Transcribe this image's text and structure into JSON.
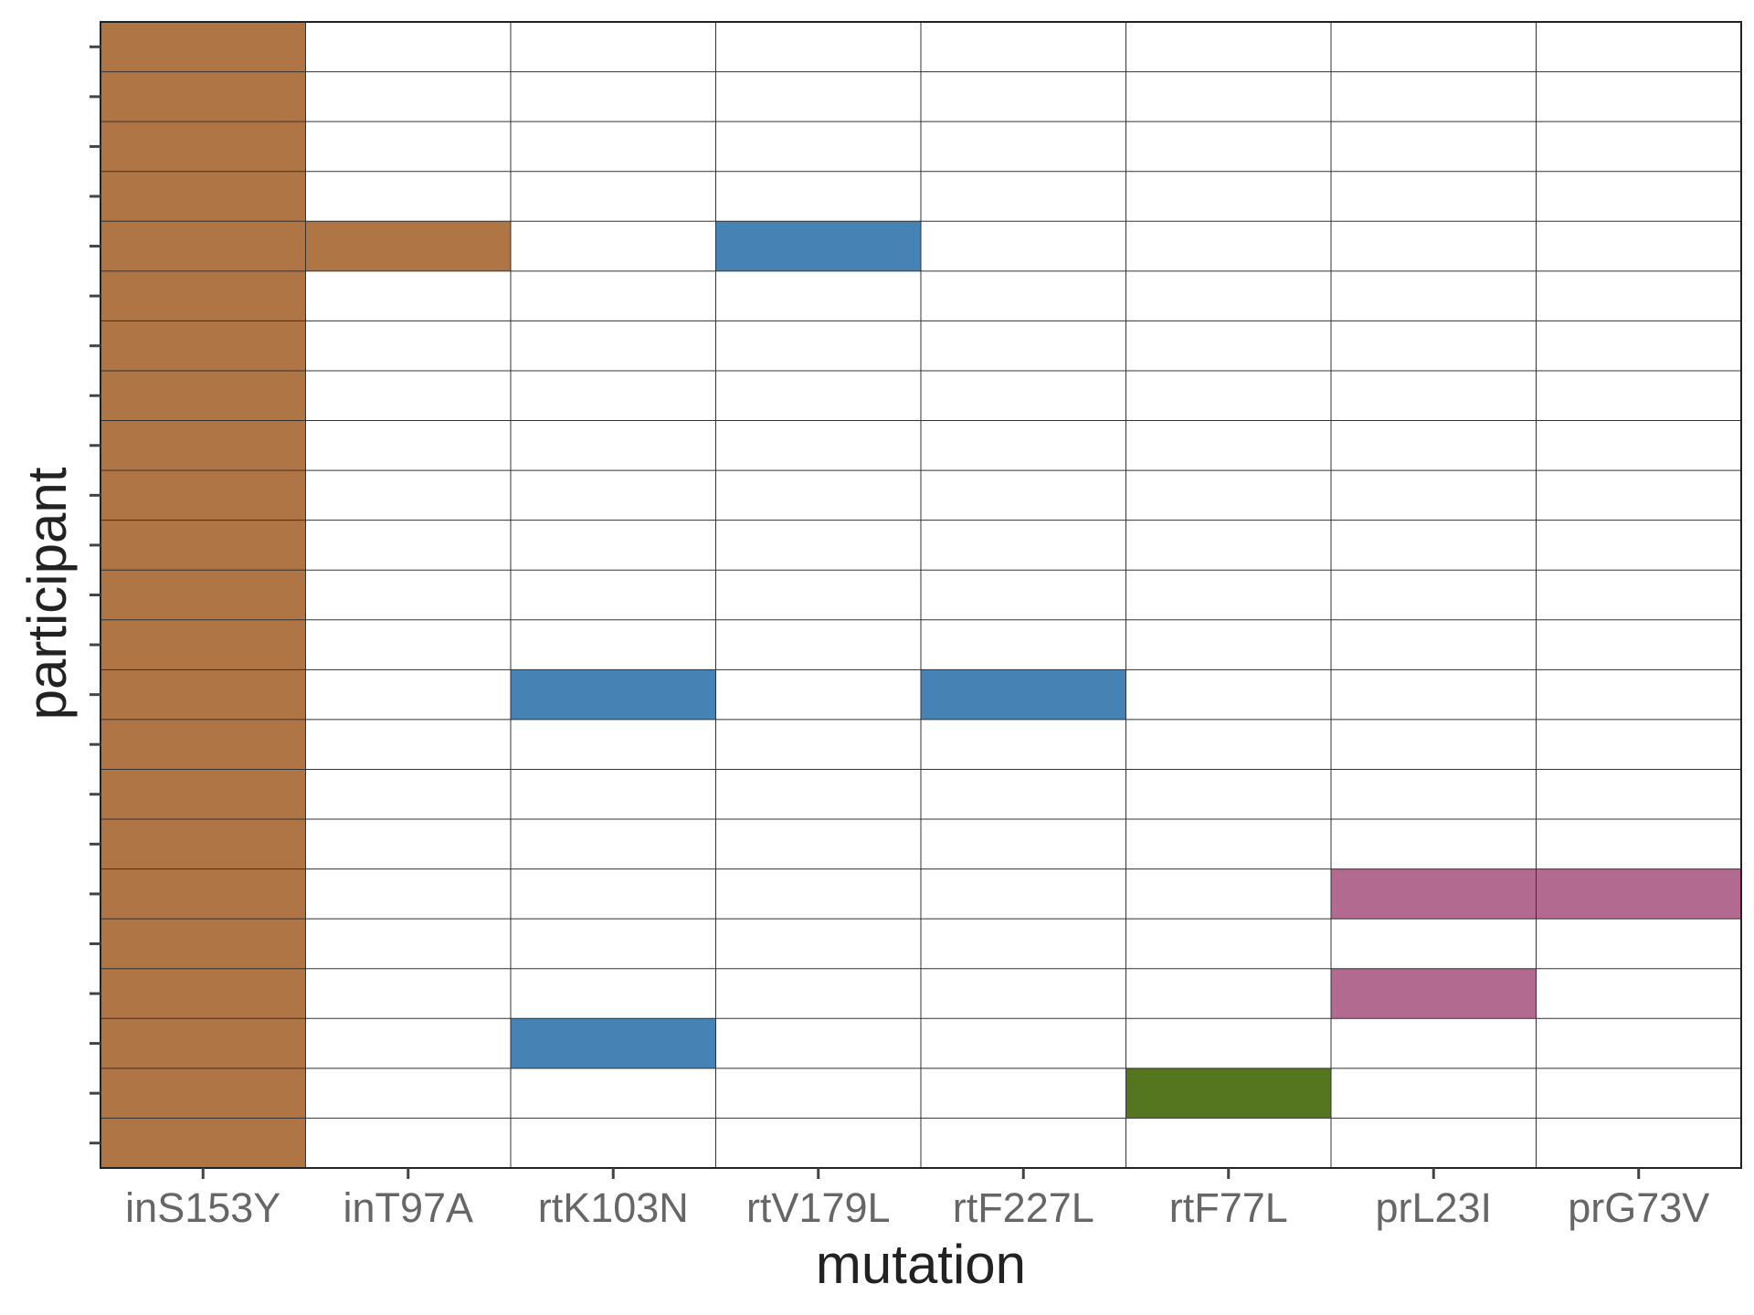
{
  "chart_data": {
    "type": "heatmap",
    "xlabel": "mutation",
    "ylabel": "participant",
    "categories": [
      "inS153Y",
      "inT97A",
      "rtK103N",
      "rtV179L",
      "rtF227L",
      "rtF77L",
      "prL23I",
      "prG73V"
    ],
    "row_count": 23,
    "grid": true,
    "legend": "none",
    "series": [
      {
        "color": "#b07545",
        "cells": [
          {
            "x": "inS153Y",
            "rows": [
              1,
              2,
              3,
              4,
              5,
              6,
              7,
              8,
              9,
              10,
              11,
              12,
              13,
              14,
              15,
              16,
              17,
              18,
              19,
              20,
              21,
              22,
              23
            ]
          },
          {
            "x": "inT97A",
            "rows": [
              5
            ]
          }
        ]
      },
      {
        "color": "#4682b4",
        "cells": [
          {
            "x": "rtV179L",
            "rows": [
              5
            ]
          },
          {
            "x": "rtK103N",
            "rows": [
              14,
              21
            ]
          },
          {
            "x": "rtF227L",
            "rows": [
              14
            ]
          }
        ]
      },
      {
        "color": "#b36a91",
        "cells": [
          {
            "x": "prL23I",
            "rows": [
              18,
              20
            ]
          },
          {
            "x": "prG73V",
            "rows": [
              18
            ]
          }
        ]
      },
      {
        "color": "#56751f",
        "cells": [
          {
            "x": "rtF77L",
            "rows": [
              22
            ]
          }
        ]
      }
    ]
  }
}
